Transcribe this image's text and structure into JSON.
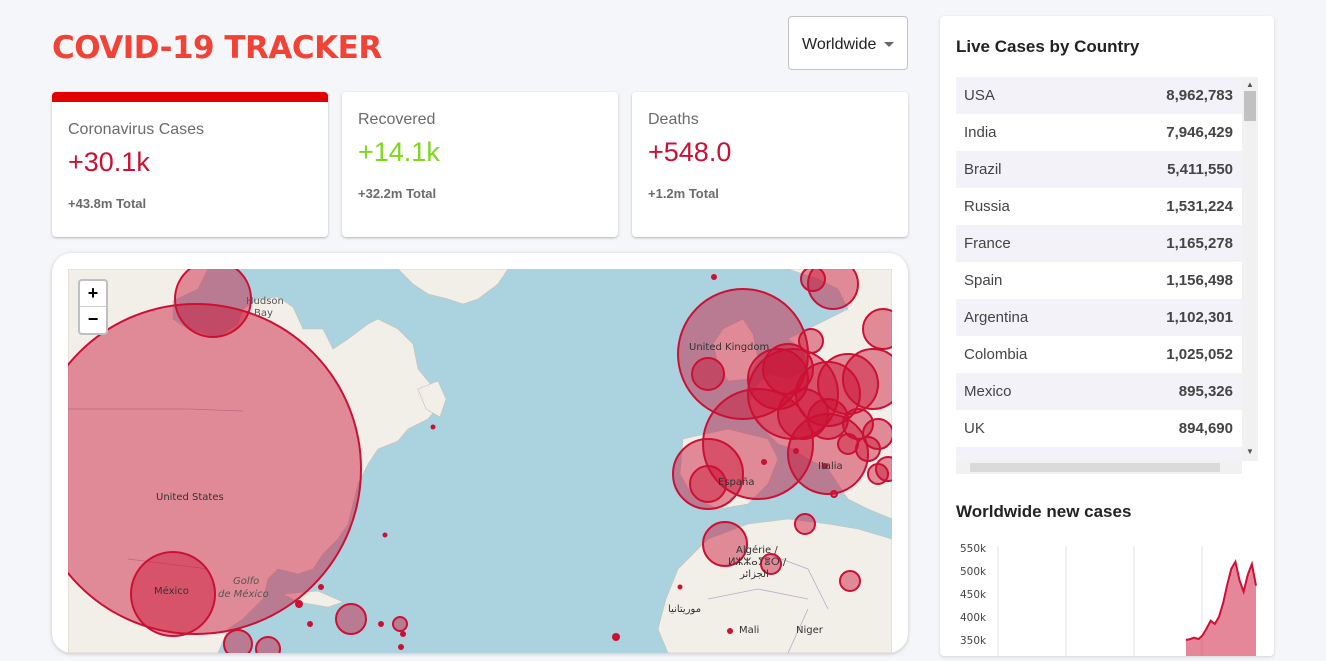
{
  "app_title": "COVID-19 TRACKER",
  "country_select": {
    "value": "Worldwide"
  },
  "stats": [
    {
      "title": "Coronavirus Cases",
      "value": "+30.1k",
      "total": "+43.8m Total",
      "color": "#cc1034",
      "selected": true
    },
    {
      "title": "Recovered",
      "value": "+14.1k",
      "total": "+32.2m Total",
      "color": "#7dd71d",
      "selected": false
    },
    {
      "title": "Deaths",
      "value": "+548.0",
      "total": "+1.2m Total",
      "color": "#cc1034",
      "selected": false
    }
  ],
  "map": {
    "zoom_in": "+",
    "zoom_out": "−",
    "labels": {
      "hudson_bay": "Hudson",
      "hudson_bay_2": "Bay",
      "united_states": "United States",
      "mexico": "México",
      "golfo": "Golfo",
      "golfo_2": "de México",
      "united_kingdom": "United Kingdom",
      "espana": "España",
      "italia": "Italia",
      "algerie": "Algérie /",
      "algerie_2": "ⵍⵣⵣⴰⵢⴻⵔ /",
      "algerie_3": "الجزائر",
      "mauritanie": "موريتانيا",
      "mali": "Mali",
      "niger": "Niger"
    },
    "circle_color": "#cc1034"
  },
  "live_cases": {
    "title": "Live Cases by Country",
    "rows": [
      {
        "country": "USA",
        "cases": "8,962,783"
      },
      {
        "country": "India",
        "cases": "7,946,429"
      },
      {
        "country": "Brazil",
        "cases": "5,411,550"
      },
      {
        "country": "Russia",
        "cases": "1,531,224"
      },
      {
        "country": "France",
        "cases": "1,165,278"
      },
      {
        "country": "Spain",
        "cases": "1,156,498"
      },
      {
        "country": "Argentina",
        "cases": "1,102,301"
      },
      {
        "country": "Colombia",
        "cases": "1,025,052"
      },
      {
        "country": "Mexico",
        "cases": "895,326"
      },
      {
        "country": "UK",
        "cases": "894,690"
      }
    ]
  },
  "new_cases_chart": {
    "title": "Worldwide new cases",
    "chart_data": {
      "type": "line",
      "title": "Worldwide new cases",
      "y_ticks": [
        "550k",
        "500k",
        "450k",
        "400k",
        "350k"
      ],
      "ylim": [
        350000,
        550000
      ],
      "series": [
        {
          "values": [
            350000,
            352000,
            355000,
            352000,
            360000,
            375000,
            392000,
            385000,
            400000,
            430000,
            470000,
            505000,
            520000,
            480000,
            455000,
            492000,
            515000,
            468000
          ]
        }
      ],
      "line_color": "#cc1034"
    }
  }
}
